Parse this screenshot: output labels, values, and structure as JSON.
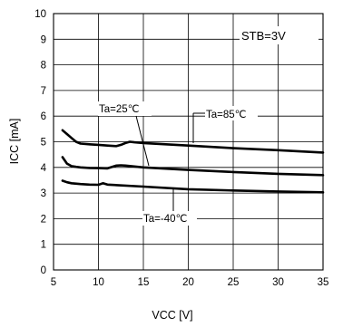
{
  "chart_data": {
    "type": "line",
    "xlabel": "VCC [V]",
    "ylabel": "ICC [mA]",
    "xlim": [
      5,
      35
    ],
    "ylim": [
      0,
      10
    ],
    "xticks": [
      5,
      10,
      15,
      20,
      25,
      30,
      35
    ],
    "yticks": [
      0,
      1,
      2,
      3,
      4,
      5,
      6,
      7,
      8,
      9,
      10
    ],
    "grid": true,
    "condition_label": "STB=3V",
    "series": [
      {
        "name": "Ta=85°C",
        "x": [
          6,
          6.5,
          7,
          7.5,
          8,
          9,
          10,
          11,
          12,
          12.5,
          13,
          13.5,
          14,
          15,
          20,
          25,
          30,
          35
        ],
        "y": [
          5.45,
          5.3,
          5.15,
          5.0,
          4.93,
          4.9,
          4.88,
          4.85,
          4.83,
          4.88,
          4.95,
          5.0,
          4.98,
          4.95,
          4.85,
          4.75,
          4.67,
          4.58
        ]
      },
      {
        "name": "Ta=25°C",
        "x": [
          6,
          6.5,
          7,
          7.5,
          8,
          9,
          10,
          11,
          12,
          12.5,
          13,
          15,
          20,
          25,
          30,
          35
        ],
        "y": [
          4.4,
          4.15,
          4.05,
          4.02,
          4.0,
          3.98,
          3.97,
          3.96,
          4.07,
          4.08,
          4.07,
          4.0,
          3.9,
          3.82,
          3.75,
          3.7
        ]
      },
      {
        "name": "Ta=-40°C",
        "x": [
          6,
          6.5,
          7,
          8,
          9,
          10,
          10.5,
          11,
          15,
          20,
          25,
          30,
          35
        ],
        "y": [
          3.48,
          3.42,
          3.38,
          3.35,
          3.33,
          3.32,
          3.38,
          3.33,
          3.25,
          3.15,
          3.1,
          3.06,
          3.03
        ]
      }
    ],
    "annotations": [
      {
        "text": "Ta=25℃",
        "series": 1
      },
      {
        "text": "Ta=85℃",
        "series": 0
      },
      {
        "text": "Ta=-40℃",
        "series": 2
      }
    ]
  }
}
